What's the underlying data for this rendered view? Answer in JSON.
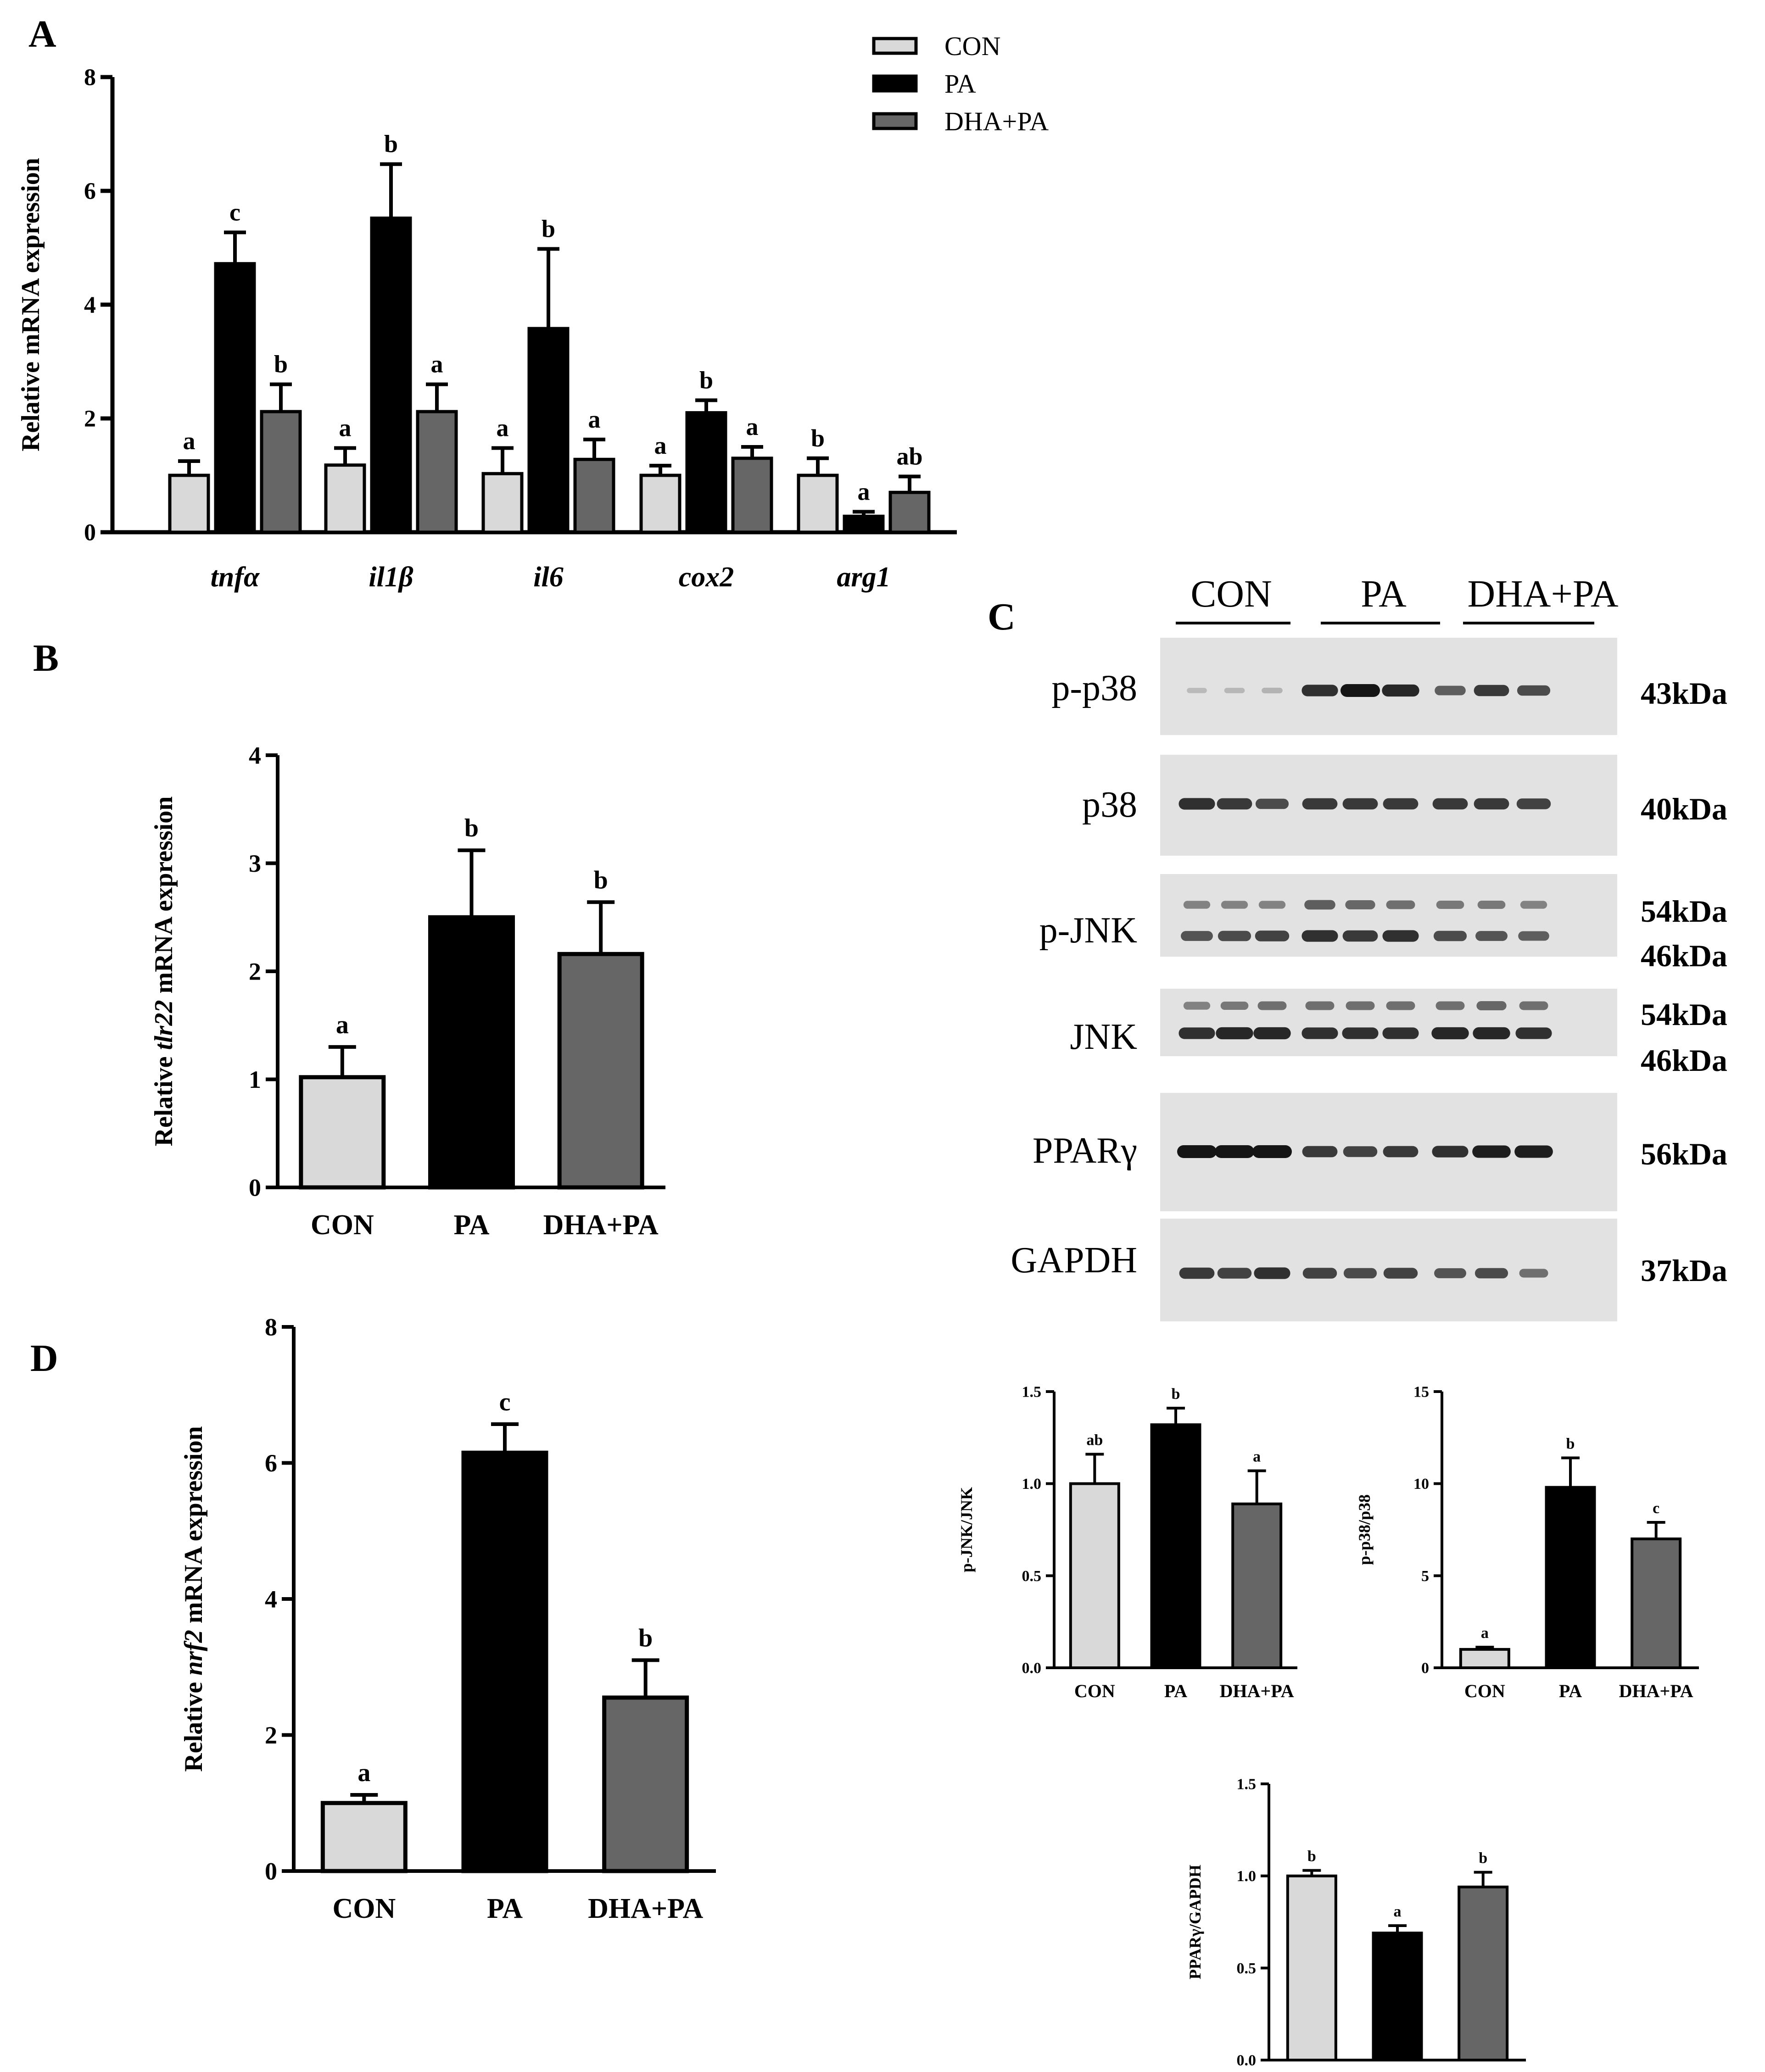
{
  "colors": {
    "con": "#d9d9d9",
    "pa": "#000000",
    "dha": "#666666",
    "axis": "#000000",
    "blot_bg": "#e2e2e2",
    "band": "#151515"
  },
  "chart_data": [
    {
      "id": "A",
      "panel_label": "A",
      "type": "bar",
      "ylabel": "Relative mRNA expression",
      "ylim": [
        0,
        8
      ],
      "yticks": [
        "0",
        "2",
        "4",
        "6",
        "8"
      ],
      "categories": [
        "tnfα",
        "il1β",
        "il6",
        "cox2",
        "arg1"
      ],
      "series": [
        {
          "name": "CON",
          "values": [
            1.0,
            1.18,
            1.03,
            1.0,
            1.0
          ],
          "errors": [
            0.25,
            0.3,
            0.45,
            0.17,
            0.3
          ],
          "letters": [
            "a",
            "a",
            "a",
            "a",
            "b"
          ]
        },
        {
          "name": "PA",
          "values": [
            4.72,
            5.52,
            3.58,
            2.1,
            0.28
          ],
          "errors": [
            0.55,
            0.95,
            1.4,
            0.22,
            0.08
          ],
          "letters": [
            "c",
            "b",
            "b",
            "b",
            "a"
          ]
        },
        {
          "name": "DHA+PA",
          "values": [
            2.12,
            2.12,
            1.28,
            1.3,
            0.7
          ],
          "errors": [
            0.48,
            0.48,
            0.35,
            0.2,
            0.28
          ],
          "letters": [
            "b",
            "a",
            "a",
            "a",
            "ab"
          ]
        }
      ],
      "legend": [
        "CON",
        "PA",
        "DHA+PA"
      ]
    },
    {
      "id": "B",
      "panel_label": "B",
      "type": "bar",
      "ylabel_pre": "Relative ",
      "ylabel_gene": "tlr22",
      "ylabel_post": " mRNA expression",
      "ylim": [
        0,
        4
      ],
      "yticks": [
        "0",
        "1",
        "2",
        "3",
        "4"
      ],
      "categories": [
        "CON",
        "PA",
        "DHA+PA"
      ],
      "values": [
        1.02,
        2.5,
        2.16
      ],
      "errors": [
        0.28,
        0.62,
        0.48
      ],
      "letters": [
        "a",
        "b",
        "b"
      ]
    },
    {
      "id": "D",
      "panel_label": "D",
      "type": "bar",
      "ylabel_pre": "Relative ",
      "ylabel_gene": "nrf2",
      "ylabel_post": " mRNA expression",
      "ylim": [
        0,
        8
      ],
      "yticks": [
        "0",
        "2",
        "4",
        "6",
        "8"
      ],
      "categories": [
        "CON",
        "PA",
        "DHA+PA"
      ],
      "values": [
        1.0,
        6.15,
        2.55
      ],
      "errors": [
        0.12,
        0.42,
        0.55
      ],
      "letters": [
        "a",
        "c",
        "b"
      ]
    },
    {
      "id": "C1",
      "type": "bar",
      "ylabel": "p-JNK/JNK",
      "ylim": [
        0,
        1.5
      ],
      "yticks": [
        "0.0",
        "0.5",
        "1.0",
        "1.5"
      ],
      "categories": [
        "CON",
        "PA",
        "DHA+PA"
      ],
      "values": [
        1.0,
        1.32,
        0.89
      ],
      "errors": [
        0.16,
        0.09,
        0.18
      ],
      "letters": [
        "ab",
        "b",
        "a"
      ]
    },
    {
      "id": "C2",
      "type": "bar",
      "ylabel": "p-p38/p38",
      "ylim": [
        0,
        15
      ],
      "yticks": [
        "0",
        "5",
        "10",
        "15"
      ],
      "categories": [
        "CON",
        "PA",
        "DHA+PA"
      ],
      "values": [
        1.0,
        9.8,
        7.0
      ],
      "errors": [
        0.12,
        1.6,
        0.9
      ],
      "letters": [
        "a",
        "b",
        "c"
      ]
    },
    {
      "id": "C3",
      "type": "bar",
      "ylabel": "PPARγ/GAPDH",
      "ylim": [
        0,
        1.5
      ],
      "yticks": [
        "0.0",
        "0.5",
        "1.0",
        "1.5"
      ],
      "categories": [
        "CON",
        "PA",
        "DHA+PA"
      ],
      "values": [
        1.0,
        0.69,
        0.94
      ],
      "errors": [
        0.03,
        0.04,
        0.08
      ],
      "letters": [
        "b",
        "a",
        "b"
      ]
    }
  ],
  "western_blot": {
    "panel_label": "C",
    "groups": [
      "CON",
      "PA",
      "DHA+PA"
    ],
    "rows": [
      {
        "name": "p-p38",
        "sizes": [
          "43kDa"
        ],
        "bands": [
          [
            0.08,
            0.1,
            0.12,
            0.85,
            1.0,
            0.9,
            0.6,
            0.8,
            0.7
          ]
        ]
      },
      {
        "name": "p38",
        "sizes": [
          "40kDa"
        ],
        "bands": [
          [
            0.85,
            0.8,
            0.7,
            0.8,
            0.8,
            0.8,
            0.8,
            0.8,
            0.75
          ]
        ]
      },
      {
        "name": "p-JNK",
        "sizes": [
          "54kDa",
          "46kDa"
        ],
        "bands": [
          [
            0.4,
            0.4,
            0.4,
            0.6,
            0.55,
            0.5,
            0.45,
            0.45,
            0.4
          ],
          [
            0.65,
            0.7,
            0.75,
            0.85,
            0.8,
            0.85,
            0.7,
            0.65,
            0.6
          ]
        ]
      },
      {
        "name": "JNK",
        "sizes": [
          "54kDa",
          "46kDa"
        ],
        "bands": [
          [
            0.4,
            0.45,
            0.5,
            0.5,
            0.5,
            0.5,
            0.5,
            0.55,
            0.5
          ],
          [
            0.85,
            0.9,
            0.9,
            0.85,
            0.85,
            0.85,
            0.9,
            0.9,
            0.85
          ]
        ]
      },
      {
        "name": "PPARγ",
        "sizes": [
          "56kDa"
        ],
        "bands": [
          [
            1.0,
            1.0,
            1.0,
            0.8,
            0.75,
            0.8,
            0.85,
            0.95,
            0.95
          ]
        ]
      },
      {
        "name": "GAPDH",
        "sizes": [
          "37kDa"
        ],
        "bands": [
          [
            0.8,
            0.75,
            0.85,
            0.75,
            0.7,
            0.75,
            0.65,
            0.7,
            0.5
          ]
        ]
      }
    ]
  }
}
